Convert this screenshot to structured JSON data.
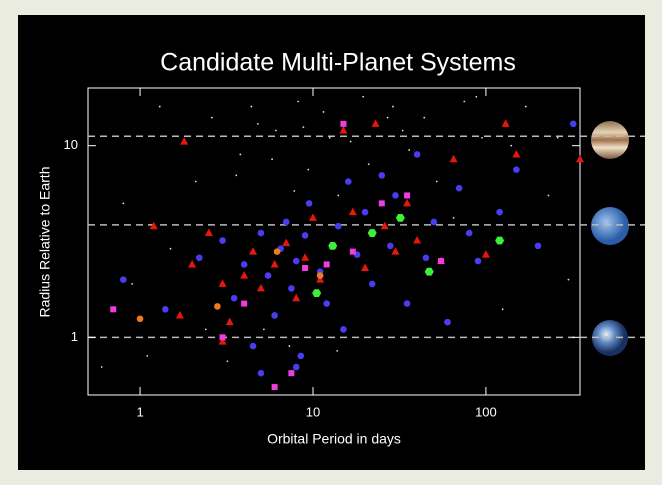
{
  "chart_data": {
    "type": "scatter",
    "title": "Candidate Multi-Planet Systems",
    "x_label": "Orbital Period in days",
    "y_label": "Radius Relative to Earth",
    "log_x": true,
    "log_y": true,
    "xlim": [
      0.5,
      350
    ],
    "ylim": [
      0.5,
      20
    ],
    "xticks": [
      1,
      10,
      100
    ],
    "yticks": [
      1,
      10
    ],
    "reference_lines": [
      1,
      3.86,
      11.2
    ],
    "series": [
      {
        "color": "#dddddd",
        "marker": "dot",
        "x": [
          0.6,
          0.9,
          1.1,
          1.5,
          2.1,
          2.6,
          3.2,
          3.8,
          4.4,
          5.2,
          6.1,
          7.3,
          8.2,
          9.4,
          11.5,
          13.8,
          16.5,
          19.5,
          24,
          29,
          36,
          44,
          58,
          75,
          95,
          125,
          170,
          230,
          300,
          0.8,
          1.3,
          2.4,
          3.6,
          5.8,
          8.8,
          14,
          21,
          33,
          52,
          88,
          140,
          260,
          4.8,
          7.8,
          12.5,
          27,
          65
        ],
        "values": [
          0.7,
          1.9,
          0.8,
          2.9,
          6.5,
          14,
          0.75,
          9.0,
          16,
          1.1,
          12,
          0.9,
          17,
          7.5,
          15,
          0.85,
          10.5,
          18,
          1.0,
          16,
          9.5,
          14,
          1.2,
          17,
          11,
          1.4,
          16,
          5.5,
          2.0,
          5.0,
          16,
          1.1,
          7.0,
          8.5,
          12.5,
          5.5,
          8.0,
          12,
          6.5,
          18,
          10,
          11,
          13,
          5.8,
          11,
          14,
          4.2
        ]
      },
      {
        "color": "#4a3cf0",
        "marker": "circle",
        "x": [
          0.8,
          1.4,
          2.2,
          3,
          3.5,
          4,
          4.5,
          5,
          5.5,
          6,
          6.5,
          7,
          7.5,
          8,
          8.5,
          9,
          9.5,
          11,
          12,
          14,
          15,
          16,
          18,
          20,
          22,
          25,
          28,
          30,
          35,
          40,
          45,
          50,
          60,
          70,
          80,
          90,
          120,
          150,
          200,
          320,
          5,
          8
        ],
        "values": [
          2.0,
          1.4,
          2.6,
          3.2,
          1.6,
          2.4,
          0.9,
          3.5,
          2.1,
          1.3,
          2.9,
          4.0,
          1.8,
          2.5,
          0.8,
          3.4,
          5.0,
          2.2,
          1.5,
          3.8,
          1.1,
          6.5,
          2.7,
          4.5,
          1.9,
          7.0,
          3.0,
          5.5,
          1.5,
          9.0,
          2.6,
          4.0,
          1.2,
          6.0,
          3.5,
          2.5,
          4.5,
          7.5,
          3.0,
          13,
          0.65,
          0.7
        ]
      },
      {
        "color": "#e8160c",
        "marker": "triangle",
        "x": [
          1.2,
          1.8,
          1.7,
          2,
          2.5,
          3,
          3.3,
          4,
          4.5,
          5,
          6,
          7,
          8,
          9,
          10,
          11,
          13,
          15,
          17,
          20,
          23,
          26,
          30,
          35,
          40,
          55,
          65,
          100,
          130,
          150,
          350,
          3
        ],
        "values": [
          3.8,
          10.5,
          1.3,
          2.4,
          3.5,
          1.9,
          1.2,
          2.1,
          2.8,
          1.8,
          2.4,
          3.1,
          1.6,
          2.6,
          4.2,
          2.0,
          3.0,
          12,
          4.5,
          2.3,
          13,
          3.8,
          2.8,
          5.0,
          3.2,
          2.5,
          8.5,
          2.7,
          13,
          9.0,
          8.5,
          0.95
        ]
      },
      {
        "color": "#f03ce0",
        "marker": "square",
        "x": [
          0.7,
          3,
          4,
          6,
          7.5,
          9,
          12,
          15,
          17,
          25,
          35,
          55
        ],
        "values": [
          1.4,
          1.0,
          1.5,
          0.55,
          0.65,
          2.3,
          2.4,
          13,
          2.8,
          5.0,
          5.5,
          2.5
        ]
      },
      {
        "color": "#f07a1e",
        "marker": "circle",
        "x": [
          1,
          2.8,
          6.2,
          11
        ],
        "values": [
          1.25,
          1.45,
          2.8,
          2.1
        ]
      },
      {
        "color": "#3cf03c",
        "marker": "hexagon",
        "x": [
          10.5,
          13,
          22,
          32,
          47,
          120
        ],
        "values": [
          1.7,
          3.0,
          3.5,
          4.2,
          2.2,
          3.2
        ]
      }
    ]
  }
}
